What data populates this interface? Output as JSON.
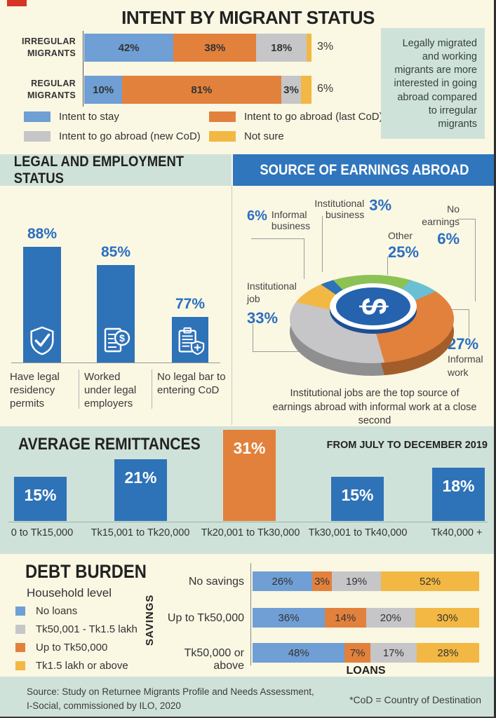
{
  "colors": {
    "cream": "#faf7e3",
    "mint": "#cfe2da",
    "blue_header": "#2f76bd",
    "bar_blue": "#2e72b8",
    "stack_blue": "#6f9fd4",
    "orange": "#e2813c",
    "gray": "#c6c6c8",
    "yellow": "#f2b843",
    "teal": "#6ac0d2",
    "green": "#8cc253",
    "pct_blue": "#2b6fc0",
    "red_mark": "#d63426"
  },
  "intent": {
    "title": "INTENT BY MIGRANT STATUS",
    "rows": [
      {
        "label": "IRREGULAR MIGRANTS",
        "outside": "3%",
        "segments": [
          {
            "value": 42,
            "text": "42%"
          },
          {
            "value": 38,
            "text": "38%"
          },
          {
            "value": 18,
            "text": "18%"
          },
          {
            "value": 3,
            "text": ""
          }
        ]
      },
      {
        "label": "REGULAR MIGRANTS",
        "outside": "6%",
        "segments": [
          {
            "value": 10,
            "text": "10%"
          },
          {
            "value": 81,
            "text": "81%"
          },
          {
            "value": 3,
            "text": "3%"
          },
          {
            "value": 6,
            "text": ""
          }
        ]
      }
    ],
    "legend": [
      {
        "label": "Intent to stay",
        "color": "#6f9fd4"
      },
      {
        "label": "Intent to go abroad (last CoD)",
        "color": "#e2813c"
      },
      {
        "label": "Intent to go abroad (new CoD)",
        "color": "#c6c6c8"
      },
      {
        "label": "Not sure",
        "color": "#f2b843"
      }
    ],
    "note": "Legally migrated and working migrants are more interested in going abroad compared to irregular migrants"
  },
  "legal": {
    "title": "LEGAL AND EMPLOYMENT STATUS",
    "bars": [
      {
        "pct": "88%",
        "label": "Have legal residency permits"
      },
      {
        "pct": "85%",
        "label": "Worked under legal employers"
      },
      {
        "pct": "77%",
        "label": "No legal bar to entering CoD"
      }
    ]
  },
  "earnings": {
    "title": "SOURCE OF EARNINGS ABROAD",
    "slices": [
      {
        "label": "Other",
        "pct": "25%",
        "value": 25,
        "color": "#8cc253"
      },
      {
        "label": "No earnings",
        "pct": "6%",
        "value": 6,
        "color": "#6ac0d2"
      },
      {
        "label": "Informal work",
        "pct": "27%",
        "value": 27,
        "color": "#e2813c"
      },
      {
        "label": "Institutional job",
        "pct": "33%",
        "value": 33,
        "color": "#c6c6c8"
      },
      {
        "label": "Informal business",
        "pct": "6%",
        "value": 6,
        "color": "#f2b843"
      },
      {
        "label": "Institutional business",
        "pct": "3%",
        "value": 3,
        "color": "#2e72b8"
      }
    ],
    "caption": "Institutional jobs are the top source of earnings abroad with informal work at a close second"
  },
  "remittances": {
    "title": "AVERAGE REMITTANCES",
    "period": "FROM JULY TO DECEMBER 2019",
    "bars": [
      {
        "pct": "15%",
        "value": 15,
        "range": "0 to Tk15,000"
      },
      {
        "pct": "21%",
        "value": 21,
        "range": "Tk15,001 to Tk20,000"
      },
      {
        "pct": "31%",
        "value": 31,
        "range": "Tk20,001 to Tk30,000"
      },
      {
        "pct": "15%",
        "value": 15,
        "range": "Tk30,001 to Tk40,000"
      },
      {
        "pct": "18%",
        "value": 18,
        "range": "Tk40,000 +"
      }
    ]
  },
  "debt": {
    "title": "DEBT BURDEN",
    "subtitle": "Household level",
    "y_axis": "SAVINGS",
    "x_axis": "LOANS",
    "legend": [
      {
        "label": "No loans",
        "color": "#6f9fd4"
      },
      {
        "label": "Tk50,001 - Tk1.5 lakh",
        "color": "#c6c6c8"
      },
      {
        "label": "Up to Tk50,000",
        "color": "#e2813c"
      },
      {
        "label": "Tk1.5 lakh or above",
        "color": "#f2b843"
      }
    ],
    "rows": [
      {
        "label": "No savings",
        "cells": [
          {
            "value": 26,
            "text": "26%"
          },
          {
            "value": 3,
            "text": "3%"
          },
          {
            "value": 19,
            "text": "19%"
          },
          {
            "value": 52,
            "text": "52%"
          }
        ]
      },
      {
        "label": "Up to Tk50,000",
        "cells": [
          {
            "value": 36,
            "text": "36%"
          },
          {
            "value": 14,
            "text": "14%"
          },
          {
            "value": 20,
            "text": "20%"
          },
          {
            "value": 30,
            "text": "30%"
          }
        ]
      },
      {
        "label": "Tk50,000 or above",
        "cells": [
          {
            "value": 48,
            "text": "48%"
          },
          {
            "value": 7,
            "text": "7%"
          },
          {
            "value": 17,
            "text": "17%"
          },
          {
            "value": 28,
            "text": "28%"
          }
        ]
      }
    ]
  },
  "footer": {
    "source_line1": "Source: Study on Returnee Migrants Profile and Needs Assessment,",
    "source_line2": "I-Social, commissioned by ILO, 2020",
    "cod_note": "*CoD = Country of Destination"
  },
  "chart_data": [
    {
      "type": "bar",
      "subtype": "stacked-horizontal",
      "title": "INTENT BY MIGRANT STATUS",
      "categories": [
        "Irregular migrants",
        "Regular migrants"
      ],
      "series": [
        {
          "name": "Intent to stay",
          "values": [
            42,
            10
          ],
          "color": "#6f9fd4"
        },
        {
          "name": "Intent to go abroad (last CoD)",
          "values": [
            38,
            81
          ],
          "color": "#e2813c"
        },
        {
          "name": "Intent to go abroad (new CoD)",
          "values": [
            18,
            3
          ],
          "color": "#c6c6c8"
        },
        {
          "name": "Not sure",
          "values": [
            3,
            6
          ],
          "color": "#f2b843"
        }
      ],
      "unit": "%",
      "legend_position": "bottom"
    },
    {
      "type": "bar",
      "title": "LEGAL AND EMPLOYMENT STATUS",
      "categories": [
        "Have legal residency permits",
        "Worked under legal employers",
        "No legal bar to entering CoD"
      ],
      "values": [
        88,
        85,
        77
      ],
      "unit": "%"
    },
    {
      "type": "pie",
      "title": "SOURCE OF EARNINGS ABROAD",
      "labels": [
        "Institutional job",
        "Informal work",
        "Other",
        "Informal business",
        "No earnings",
        "Institutional business"
      ],
      "values": [
        33,
        27,
        25,
        6,
        6,
        3
      ],
      "unit": "%",
      "annotation": "Institutional jobs are the top source of earnings abroad with informal work at a close second"
    },
    {
      "type": "bar",
      "title": "AVERAGE REMITTANCES",
      "subtitle": "FROM JULY TO DECEMBER 2019",
      "categories": [
        "0 to Tk15,000",
        "Tk15,001 to Tk20,000",
        "Tk20,001 to Tk30,000",
        "Tk30,001 to Tk40,000",
        "Tk40,000 +"
      ],
      "values": [
        15,
        21,
        31,
        15,
        18
      ],
      "unit": "%",
      "highlight_index": 2
    },
    {
      "type": "bar",
      "subtype": "stacked-horizontal",
      "title": "DEBT BURDEN (Household level)",
      "xlabel": "LOANS",
      "ylabel": "SAVINGS",
      "categories": [
        "No savings",
        "Up to Tk50,000",
        "Tk50,000 or above"
      ],
      "series": [
        {
          "name": "No loans",
          "values": [
            26,
            36,
            48
          ],
          "color": "#6f9fd4"
        },
        {
          "name": "Up to Tk50,000",
          "values": [
            3,
            14,
            7
          ],
          "color": "#e2813c"
        },
        {
          "name": "Tk50,001 - Tk1.5 lakh",
          "values": [
            19,
            20,
            17
          ],
          "color": "#c6c6c8"
        },
        {
          "name": "Tk1.5 lakh or above",
          "values": [
            52,
            30,
            28
          ],
          "color": "#f2b843"
        }
      ],
      "unit": "%"
    }
  ]
}
